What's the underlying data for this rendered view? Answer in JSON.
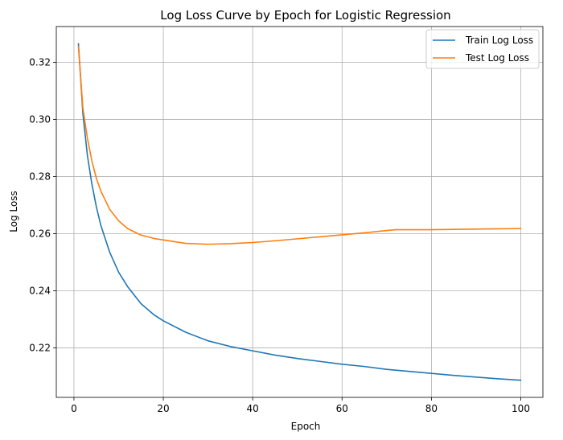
{
  "chart_data": {
    "type": "line",
    "title": "Log Loss Curve by Epoch for Logistic Regression",
    "xlabel": "Epoch",
    "ylabel": "Log Loss",
    "xlim": [
      -3.95,
      104.95
    ],
    "ylim": [
      0.2027,
      0.3325
    ],
    "xticks": [
      0,
      20,
      40,
      60,
      80,
      100
    ],
    "yticks": [
      0.22,
      0.24,
      0.26,
      0.28,
      0.3,
      0.32
    ],
    "xtick_labels": [
      "0",
      "20",
      "40",
      "60",
      "80",
      "100"
    ],
    "ytick_labels": [
      "0.22",
      "0.24",
      "0.26",
      "0.28",
      "0.30",
      "0.32"
    ],
    "grid": true,
    "legend_position": "top-right",
    "series": [
      {
        "name": "Train Log Loss",
        "color": "#1f77b4",
        "x": [
          1,
          2,
          3,
          4,
          5,
          6,
          8,
          10,
          12,
          15,
          18,
          20,
          25,
          30,
          35,
          40,
          45,
          50,
          55,
          60,
          65,
          70,
          75,
          80,
          85,
          90,
          95,
          100
        ],
        "y": [
          0.3265,
          0.302,
          0.2875,
          0.2775,
          0.2695,
          0.263,
          0.2535,
          0.2465,
          0.2415,
          0.2355,
          0.2315,
          0.2295,
          0.2255,
          0.2225,
          0.2205,
          0.219,
          0.2175,
          0.2163,
          0.2153,
          0.2143,
          0.2135,
          0.2125,
          0.2118,
          0.2111,
          0.2104,
          0.2098,
          0.2092,
          0.2087
        ]
      },
      {
        "name": "Test Log Loss",
        "color": "#ff7f0e",
        "x": [
          1,
          2,
          3,
          4,
          5,
          6,
          8,
          10,
          12,
          15,
          18,
          20,
          25,
          30,
          35,
          40,
          45,
          50,
          55,
          60,
          65,
          70,
          72,
          75,
          80,
          85,
          90,
          95,
          100
        ],
        "y": [
          0.3255,
          0.304,
          0.2935,
          0.2855,
          0.2795,
          0.275,
          0.2685,
          0.2645,
          0.2618,
          0.2595,
          0.2583,
          0.2578,
          0.2566,
          0.2563,
          0.2565,
          0.2569,
          0.2575,
          0.2582,
          0.2589,
          0.2596,
          0.2603,
          0.2611,
          0.2614,
          0.2614,
          0.2614,
          0.2615,
          0.2616,
          0.2617,
          0.2618
        ]
      }
    ]
  }
}
